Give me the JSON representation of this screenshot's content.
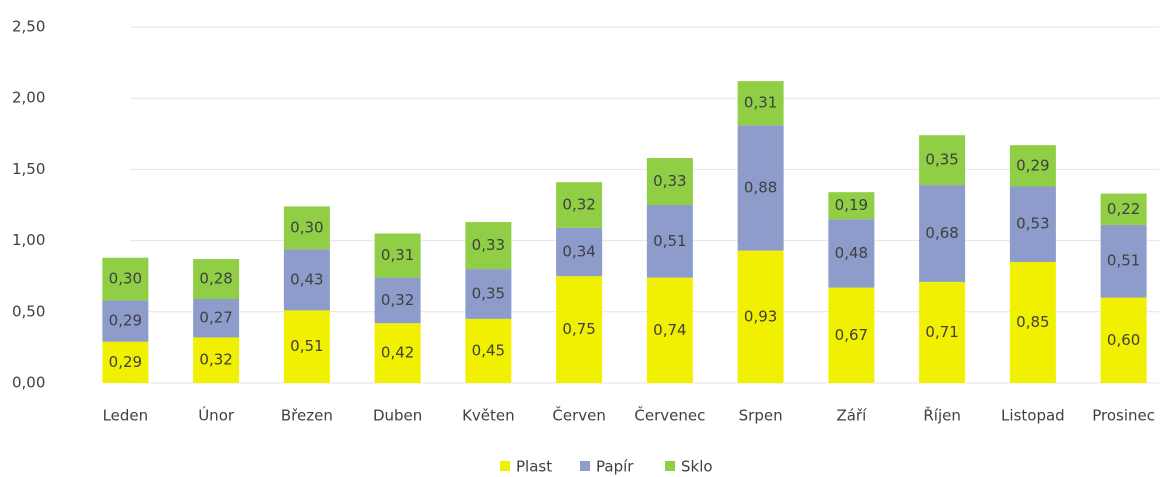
{
  "chart_data": {
    "type": "stacked_bar",
    "categories": [
      "Leden",
      "Únor",
      "Březen",
      "Duben",
      "Květen",
      "Červen",
      "Červenec",
      "Srpen",
      "Září",
      "Říjen",
      "Listopad",
      "Prosinec"
    ],
    "series": [
      {
        "name": "Plast",
        "color": "#f0f000",
        "values": [
          0.29,
          0.32,
          0.51,
          0.42,
          0.45,
          0.75,
          0.74,
          0.93,
          0.67,
          0.71,
          0.85,
          0.6
        ],
        "value_labels": [
          "0,29",
          "0,32",
          "0,51",
          "0,42",
          "0,45",
          "0,75",
          "0,74",
          "0,93",
          "0,67",
          "0,71",
          "0,85",
          "0,60"
        ]
      },
      {
        "name": "Papír",
        "color": "#8e9ccb",
        "values": [
          0.29,
          0.27,
          0.43,
          0.32,
          0.35,
          0.34,
          0.51,
          0.88,
          0.48,
          0.68,
          0.53,
          0.51
        ],
        "value_labels": [
          "0,29",
          "0,27",
          "0,43",
          "0,32",
          "0,35",
          "0,34",
          "0,51",
          "0,88",
          "0,48",
          "0,68",
          "0,53",
          "0,51"
        ]
      },
      {
        "name": "Sklo",
        "color": "#8fce45",
        "values": [
          0.3,
          0.28,
          0.3,
          0.31,
          0.33,
          0.32,
          0.33,
          0.31,
          0.19,
          0.35,
          0.29,
          0.22
        ],
        "value_labels": [
          "0,30",
          "0,28",
          "0,30",
          "0,31",
          "0,33",
          "0,32",
          "0,33",
          "0,31",
          "0,19",
          "0,35",
          "0,29",
          "0,22"
        ]
      }
    ],
    "ylim": [
      0,
      2.5
    ],
    "yticks": [
      {
        "value": 0,
        "label": "0,00"
      },
      {
        "value": 0.5,
        "label": "0,50"
      },
      {
        "value": 1,
        "label": "1,00"
      },
      {
        "value": 1.5,
        "label": "1,50"
      },
      {
        "value": 2,
        "label": "2,00"
      },
      {
        "value": 2.5,
        "label": "2,50"
      }
    ],
    "grid": true,
    "legend": "bottom"
  }
}
